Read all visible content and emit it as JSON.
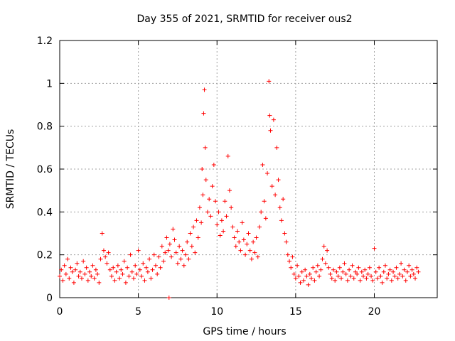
{
  "chart_data": {
    "type": "scatter",
    "title": "Day 355 of 2021, SRMTID for receiver ous2",
    "xlabel": "GPS time / hours",
    "ylabel": "SRMTID / TECUs",
    "xlim": [
      0,
      24
    ],
    "ylim": [
      0,
      1.2
    ],
    "x_ticks": [
      0,
      5,
      10,
      15,
      20
    ],
    "x_tick_labels": [
      "0",
      "5",
      "10",
      "15",
      "20"
    ],
    "y_ticks": [
      0,
      0.2,
      0.4,
      0.6,
      0.8,
      1.0,
      1.2
    ],
    "y_tick_labels": [
      "0",
      "0.2",
      "0.4",
      "0.6",
      "0.8",
      "1",
      "1.2"
    ],
    "grid": true,
    "marker": "plus",
    "color": "#ff0000",
    "series": [
      {
        "name": "ous2",
        "points": [
          [
            0.0,
            0.1
          ],
          [
            0.1,
            0.13
          ],
          [
            0.2,
            0.08
          ],
          [
            0.3,
            0.15
          ],
          [
            0.4,
            0.11
          ],
          [
            0.5,
            0.18
          ],
          [
            0.6,
            0.09
          ],
          [
            0.7,
            0.14
          ],
          [
            0.8,
            0.12
          ],
          [
            0.9,
            0.07
          ],
          [
            1.0,
            0.13
          ],
          [
            1.1,
            0.16
          ],
          [
            1.2,
            0.1
          ],
          [
            1.3,
            0.12
          ],
          [
            1.4,
            0.09
          ],
          [
            1.5,
            0.17
          ],
          [
            1.6,
            0.11
          ],
          [
            1.7,
            0.14
          ],
          [
            1.8,
            0.08
          ],
          [
            1.9,
            0.12
          ],
          [
            2.0,
            0.1
          ],
          [
            2.1,
            0.15
          ],
          [
            2.2,
            0.09
          ],
          [
            2.3,
            0.13
          ],
          [
            2.4,
            0.11
          ],
          [
            2.5,
            0.07
          ],
          [
            2.6,
            0.18
          ],
          [
            2.7,
            0.3
          ],
          [
            2.8,
            0.22
          ],
          [
            2.9,
            0.19
          ],
          [
            3.0,
            0.16
          ],
          [
            3.1,
            0.21
          ],
          [
            3.2,
            0.13
          ],
          [
            3.3,
            0.1
          ],
          [
            3.4,
            0.14
          ],
          [
            3.5,
            0.08
          ],
          [
            3.6,
            0.12
          ],
          [
            3.7,
            0.15
          ],
          [
            3.8,
            0.09
          ],
          [
            3.9,
            0.13
          ],
          [
            4.0,
            0.11
          ],
          [
            4.1,
            0.17
          ],
          [
            4.2,
            0.07
          ],
          [
            4.3,
            0.14
          ],
          [
            4.4,
            0.1
          ],
          [
            4.5,
            0.2
          ],
          [
            4.6,
            0.12
          ],
          [
            4.7,
            0.09
          ],
          [
            4.8,
            0.15
          ],
          [
            4.9,
            0.11
          ],
          [
            5.0,
            0.22
          ],
          [
            5.1,
            0.13
          ],
          [
            5.2,
            0.1
          ],
          [
            5.3,
            0.16
          ],
          [
            5.4,
            0.08
          ],
          [
            5.5,
            0.14
          ],
          [
            5.6,
            0.12
          ],
          [
            5.7,
            0.18
          ],
          [
            5.8,
            0.09
          ],
          [
            5.9,
            0.13
          ],
          [
            6.0,
            0.2
          ],
          [
            6.1,
            0.15
          ],
          [
            6.2,
            0.11
          ],
          [
            6.3,
            0.19
          ],
          [
            6.4,
            0.14
          ],
          [
            6.5,
            0.24
          ],
          [
            6.6,
            0.17
          ],
          [
            6.7,
            0.21
          ],
          [
            6.8,
            0.28
          ],
          [
            6.9,
            0.22
          ],
          [
            7.0,
            0.25
          ],
          [
            7.1,
            0.19
          ],
          [
            7.2,
            0.32
          ],
          [
            7.3,
            0.27
          ],
          [
            7.4,
            0.21
          ],
          [
            7.5,
            0.16
          ],
          [
            7.6,
            0.24
          ],
          [
            7.7,
            0.18
          ],
          [
            7.8,
            0.22
          ],
          [
            7.9,
            0.15
          ],
          [
            8.0,
            0.2
          ],
          [
            8.1,
            0.26
          ],
          [
            8.2,
            0.18
          ],
          [
            8.3,
            0.3
          ],
          [
            8.4,
            0.24
          ],
          [
            8.5,
            0.33
          ],
          [
            8.6,
            0.21
          ],
          [
            8.7,
            0.36
          ],
          [
            8.8,
            0.28
          ],
          [
            8.9,
            0.42
          ],
          [
            9.0,
            0.35
          ],
          [
            9.05,
            0.6
          ],
          [
            9.1,
            0.48
          ],
          [
            9.15,
            0.86
          ],
          [
            9.2,
            0.97
          ],
          [
            9.25,
            0.7
          ],
          [
            9.3,
            0.55
          ],
          [
            9.4,
            0.4
          ],
          [
            9.5,
            0.46
          ],
          [
            9.6,
            0.38
          ],
          [
            9.7,
            0.52
          ],
          [
            9.8,
            0.62
          ],
          [
            9.9,
            0.45
          ],
          [
            10.0,
            0.34
          ],
          [
            10.1,
            0.4
          ],
          [
            10.2,
            0.29
          ],
          [
            10.3,
            0.36
          ],
          [
            10.4,
            0.31
          ],
          [
            10.5,
            0.45
          ],
          [
            10.6,
            0.38
          ],
          [
            10.7,
            0.66
          ],
          [
            10.8,
            0.5
          ],
          [
            10.9,
            0.42
          ],
          [
            11.0,
            0.33
          ],
          [
            11.1,
            0.28
          ],
          [
            11.2,
            0.24
          ],
          [
            11.3,
            0.31
          ],
          [
            11.4,
            0.26
          ],
          [
            11.5,
            0.22
          ],
          [
            11.6,
            0.35
          ],
          [
            11.7,
            0.27
          ],
          [
            11.8,
            0.2
          ],
          [
            11.9,
            0.25
          ],
          [
            12.0,
            0.3
          ],
          [
            12.1,
            0.22
          ],
          [
            12.2,
            0.18
          ],
          [
            12.3,
            0.26
          ],
          [
            12.4,
            0.21
          ],
          [
            12.5,
            0.28
          ],
          [
            12.6,
            0.19
          ],
          [
            12.7,
            0.33
          ],
          [
            12.8,
            0.4
          ],
          [
            12.9,
            0.62
          ],
          [
            13.0,
            0.45
          ],
          [
            13.1,
            0.37
          ],
          [
            13.2,
            0.58
          ],
          [
            13.3,
            1.01
          ],
          [
            13.35,
            0.85
          ],
          [
            13.4,
            0.78
          ],
          [
            13.5,
            0.52
          ],
          [
            13.6,
            0.83
          ],
          [
            13.7,
            0.48
          ],
          [
            13.8,
            0.7
          ],
          [
            13.9,
            0.55
          ],
          [
            14.0,
            0.42
          ],
          [
            14.1,
            0.36
          ],
          [
            14.2,
            0.46
          ],
          [
            14.3,
            0.3
          ],
          [
            14.4,
            0.26
          ],
          [
            14.5,
            0.2
          ],
          [
            14.6,
            0.17
          ],
          [
            14.7,
            0.14
          ],
          [
            14.8,
            0.19
          ],
          [
            14.9,
            0.11
          ],
          [
            15.0,
            0.09
          ],
          [
            15.1,
            0.15
          ],
          [
            15.2,
            0.1
          ],
          [
            15.3,
            0.07
          ],
          [
            15.4,
            0.12
          ],
          [
            15.5,
            0.08
          ],
          [
            15.6,
            0.13
          ],
          [
            15.7,
            0.1
          ],
          [
            15.8,
            0.06
          ],
          [
            15.9,
            0.11
          ],
          [
            16.0,
            0.09
          ],
          [
            16.1,
            0.14
          ],
          [
            16.2,
            0.08
          ],
          [
            16.3,
            0.12
          ],
          [
            16.4,
            0.15
          ],
          [
            16.5,
            0.1
          ],
          [
            16.6,
            0.13
          ],
          [
            16.7,
            0.18
          ],
          [
            16.8,
            0.24
          ],
          [
            16.9,
            0.16
          ],
          [
            17.0,
            0.22
          ],
          [
            17.1,
            0.14
          ],
          [
            17.2,
            0.11
          ],
          [
            17.3,
            0.09
          ],
          [
            17.4,
            0.13
          ],
          [
            17.5,
            0.08
          ],
          [
            17.6,
            0.12
          ],
          [
            17.7,
            0.1
          ],
          [
            17.8,
            0.14
          ],
          [
            17.9,
            0.09
          ],
          [
            18.0,
            0.12
          ],
          [
            18.1,
            0.16
          ],
          [
            18.2,
            0.11
          ],
          [
            18.3,
            0.08
          ],
          [
            18.4,
            0.13
          ],
          [
            18.5,
            0.1
          ],
          [
            18.6,
            0.15
          ],
          [
            18.7,
            0.09
          ],
          [
            18.8,
            0.12
          ],
          [
            18.9,
            0.11
          ],
          [
            19.0,
            0.14
          ],
          [
            19.1,
            0.08
          ],
          [
            19.2,
            0.12
          ],
          [
            19.3,
            0.1
          ],
          [
            19.4,
            0.13
          ],
          [
            19.5,
            0.09
          ],
          [
            19.6,
            0.11
          ],
          [
            19.7,
            0.14
          ],
          [
            19.8,
            0.1
          ],
          [
            19.9,
            0.08
          ],
          [
            20.0,
            0.23
          ],
          [
            20.1,
            0.12
          ],
          [
            20.2,
            0.09
          ],
          [
            20.3,
            0.14
          ],
          [
            20.4,
            0.1
          ],
          [
            20.5,
            0.07
          ],
          [
            20.6,
            0.12
          ],
          [
            20.7,
            0.15
          ],
          [
            20.8,
            0.09
          ],
          [
            20.9,
            0.11
          ],
          [
            21.0,
            0.13
          ],
          [
            21.1,
            0.08
          ],
          [
            21.2,
            0.12
          ],
          [
            21.3,
            0.1
          ],
          [
            21.4,
            0.14
          ],
          [
            21.5,
            0.09
          ],
          [
            21.6,
            0.11
          ],
          [
            21.7,
            0.16
          ],
          [
            21.8,
            0.1
          ],
          [
            21.9,
            0.13
          ],
          [
            22.0,
            0.08
          ],
          [
            22.1,
            0.12
          ],
          [
            22.2,
            0.15
          ],
          [
            22.3,
            0.1
          ],
          [
            22.4,
            0.13
          ],
          [
            22.5,
            0.11
          ],
          [
            22.6,
            0.09
          ],
          [
            22.7,
            0.14
          ],
          [
            22.8,
            0.12
          ],
          [
            6.95,
            0.0
          ]
        ]
      }
    ]
  }
}
